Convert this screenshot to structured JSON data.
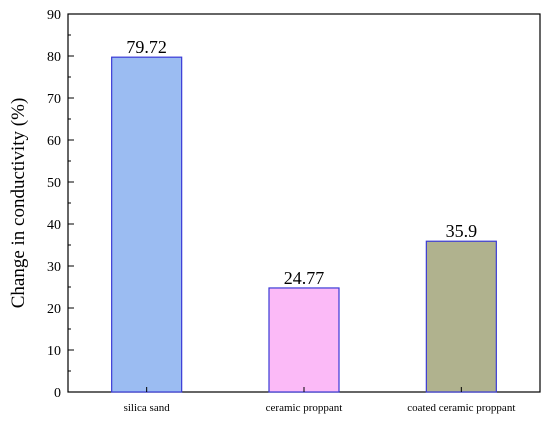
{
  "chart_data": {
    "type": "bar",
    "title": "",
    "xlabel": "",
    "ylabel": "Change in conductivity (%)",
    "categories": [
      "silica sand",
      "ceramic proppant",
      "coated ceramic proppant"
    ],
    "values": [
      79.72,
      24.77,
      35.9
    ],
    "data_labels": [
      "79.72",
      "24.77",
      "35.9"
    ],
    "ylim": [
      0,
      90
    ],
    "yticks": [
      0,
      10,
      20,
      30,
      40,
      50,
      60,
      70,
      80,
      90
    ],
    "bar_colors": [
      "#9bbcf2",
      "#fbbaf7",
      "#b0b28e"
    ],
    "bar_edge_color": "#3a3ad6",
    "grid": false,
    "legend": "none"
  }
}
